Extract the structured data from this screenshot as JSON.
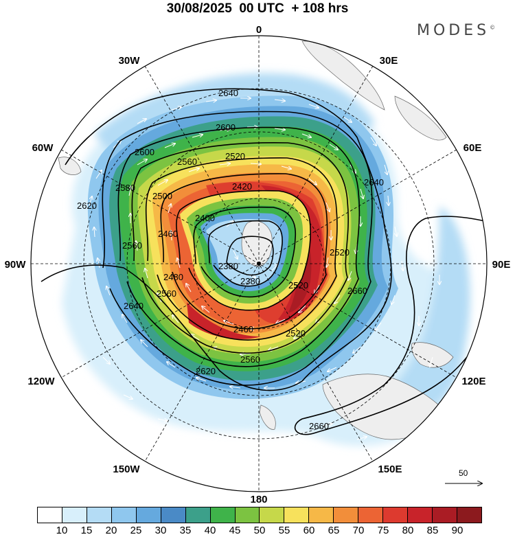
{
  "header": {
    "title": "30/08/2025  00 UTC  + 108 hrs",
    "brand": "MODES",
    "brand_mark": "©"
  },
  "map": {
    "projection": "south-polar-stereographic",
    "longitude_labels": {
      "top": "0",
      "top_left": "30W",
      "top_right": "30E",
      "upper_left": "60W",
      "upper_right": "60E",
      "left": "90W",
      "right": "90E",
      "lower_left": "120W",
      "lower_right": "120E",
      "bottom_left": "150W",
      "bottom_right": "150E",
      "bottom": "180"
    },
    "contour_labels": [
      "2640",
      "2600",
      "2600",
      "2560",
      "2520",
      "2580",
      "2500",
      "2420",
      "2620",
      "2400",
      "2460",
      "2380",
      "2560",
      "2520",
      "2520",
      "2640",
      "2480",
      "2560",
      "2380",
      "2660",
      "2460",
      "2520",
      "2640",
      "2560",
      "2620",
      "2660"
    ],
    "reference_vector_label": "50"
  },
  "colorbar": {
    "colors": [
      "#ffffff",
      "#d8effb",
      "#b4dcf5",
      "#8fc7ee",
      "#65a9de",
      "#4a8ac6",
      "#3ca08a",
      "#3fb34a",
      "#7cc341",
      "#c6d84a",
      "#f7e15c",
      "#f6b847",
      "#f28e3a",
      "#ec6434",
      "#dd3a2f",
      "#c8232a",
      "#aa1c24",
      "#8c1a1e"
    ],
    "tick_labels": [
      "10",
      "15",
      "20",
      "25",
      "30",
      "35",
      "40",
      "45",
      "50",
      "55",
      "60",
      "65",
      "70",
      "75",
      "80",
      "85",
      "90"
    ]
  }
}
